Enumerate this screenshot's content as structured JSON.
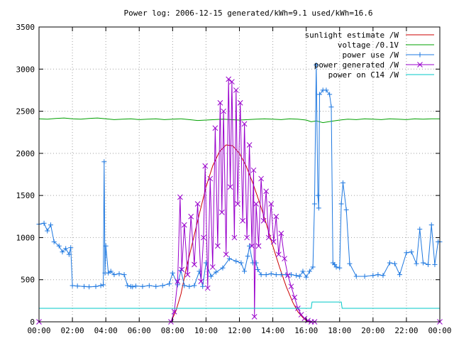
{
  "chart_data": {
    "type": "line",
    "title": "Power log: 2006-12-15 generated/kWh=9.1 used/kWh=16.6",
    "xlabel": "",
    "ylabel": "",
    "xlim": [
      0,
      24
    ],
    "ylim": [
      0,
      3500
    ],
    "x_ticks": [
      0,
      2,
      4,
      6,
      8,
      10,
      12,
      14,
      16,
      18,
      20,
      22,
      24
    ],
    "x_tick_labels": [
      "00:00",
      "02:00",
      "04:00",
      "06:00",
      "08:00",
      "10:00",
      "12:00",
      "14:00",
      "16:00",
      "18:00",
      "20:00",
      "22:00",
      "00:00"
    ],
    "y_ticks": [
      0,
      500,
      1000,
      1500,
      2000,
      2500,
      3000,
      3500
    ],
    "y_tick_labels": [
      "0",
      "500",
      "1000",
      "1500",
      "2000",
      "2500",
      "3000",
      "3500"
    ],
    "grid": true,
    "legend_position": "top-right",
    "series": [
      {
        "name": "sunlight estimate /W",
        "color": "#cc0000",
        "marker": "none",
        "x": [
          0,
          7.9,
          8.2,
          8.5,
          8.8,
          9.2,
          9.6,
          10.0,
          10.4,
          10.8,
          11.2,
          11.6,
          12.0,
          12.4,
          12.8,
          13.2,
          13.6,
          14.0,
          14.4,
          14.8,
          15.2,
          15.5,
          15.8,
          16.0,
          16.2,
          24
        ],
        "y": [
          0,
          0,
          130,
          330,
          620,
          950,
          1280,
          1600,
          1850,
          2020,
          2100,
          2090,
          2000,
          1850,
          1650,
          1420,
          1170,
          900,
          650,
          420,
          230,
          120,
          50,
          15,
          0,
          0
        ]
      },
      {
        "name": "voltage /0.1V",
        "color": "#00a000",
        "marker": "none",
        "x": [
          0,
          0.5,
          1.0,
          1.5,
          2.0,
          2.5,
          3.0,
          3.5,
          4.0,
          4.5,
          5.0,
          5.5,
          6.0,
          6.5,
          7.0,
          7.5,
          8.0,
          8.5,
          9.0,
          9.5,
          10.0,
          10.5,
          11.0,
          11.5,
          12.0,
          12.5,
          13.0,
          13.5,
          14.0,
          14.5,
          15.0,
          15.5,
          16.0,
          16.3,
          16.6,
          17.0,
          17.5,
          18.0,
          18.5,
          19.0,
          19.5,
          20.0,
          20.5,
          21.0,
          21.5,
          22.0,
          22.5,
          23.0,
          23.5,
          24.0
        ],
        "y": [
          2410,
          2405,
          2415,
          2420,
          2410,
          2405,
          2415,
          2420,
          2410,
          2400,
          2405,
          2410,
          2400,
          2405,
          2410,
          2400,
          2405,
          2410,
          2400,
          2390,
          2395,
          2400,
          2405,
          2400,
          2395,
          2400,
          2405,
          2410,
          2405,
          2400,
          2410,
          2405,
          2395,
          2375,
          2385,
          2365,
          2380,
          2395,
          2405,
          2400,
          2410,
          2405,
          2400,
          2410,
          2405,
          2400,
          2410,
          2405,
          2410,
          2410
        ]
      },
      {
        "name": "power use /W",
        "color": "#1e78e0",
        "marker": "plus",
        "x": [
          0,
          0.3,
          0.5,
          0.7,
          0.9,
          1.2,
          1.4,
          1.6,
          1.8,
          1.9,
          2.0,
          2.3,
          2.7,
          3.0,
          3.4,
          3.7,
          3.85,
          3.9,
          3.95,
          4.0,
          4.15,
          4.3,
          4.5,
          4.8,
          5.1,
          5.3,
          5.5,
          5.6,
          5.8,
          6.2,
          6.6,
          7.0,
          7.4,
          7.8,
          8.0,
          8.3,
          8.5,
          8.7,
          9.0,
          9.3,
          9.6,
          9.8,
          10.0,
          10.3,
          10.6,
          11.0,
          11.4,
          11.8,
          12.1,
          12.3,
          12.5,
          12.6,
          12.8,
          13.0,
          13.1,
          13.3,
          13.6,
          13.9,
          14.2,
          14.5,
          14.8,
          15.1,
          15.4,
          15.6,
          15.8,
          16.0,
          16.2,
          16.4,
          16.5,
          16.6,
          16.7,
          16.75,
          16.8,
          17.0,
          17.2,
          17.4,
          17.5,
          17.6,
          17.7,
          17.8,
          18.0,
          18.1,
          18.2,
          18.4,
          18.6,
          19.0,
          19.5,
          20.0,
          20.3,
          20.6,
          21.0,
          21.3,
          21.6,
          22.0,
          22.3,
          22.6,
          22.8,
          23.0,
          23.3,
          23.5,
          23.7,
          23.9,
          24.0
        ],
        "y": [
          1160,
          1170,
          1080,
          1150,
          950,
          900,
          830,
          870,
          800,
          880,
          430,
          425,
          420,
          415,
          420,
          430,
          440,
          1900,
          580,
          900,
          580,
          600,
          560,
          570,
          560,
          430,
          420,
          415,
          425,
          420,
          430,
          420,
          430,
          450,
          580,
          440,
          610,
          430,
          420,
          430,
          600,
          420,
          700,
          540,
          590,
          640,
          750,
          720,
          700,
          600,
          780,
          900,
          700,
          700,
          620,
          560,
          560,
          570,
          560,
          560,
          560,
          560,
          550,
          540,
          600,
          530,
          600,
          650,
          1400,
          3050,
          1500,
          1350,
          2700,
          2750,
          2750,
          2700,
          2550,
          700,
          680,
          650,
          640,
          1400,
          1650,
          1330,
          690,
          540,
          540,
          550,
          560,
          550,
          700,
          690,
          560,
          820,
          830,
          690,
          1100,
          700,
          680,
          1150,
          680,
          950,
          950
        ]
      },
      {
        "name": "power generated /W",
        "color": "#9900cc",
        "marker": "cross",
        "x": [
          0,
          7.9,
          8.1,
          8.3,
          8.45,
          8.55,
          8.7,
          8.9,
          9.1,
          9.3,
          9.5,
          9.7,
          9.85,
          9.95,
          10.1,
          10.25,
          10.4,
          10.55,
          10.7,
          10.85,
          10.95,
          11.05,
          11.2,
          11.35,
          11.45,
          11.55,
          11.7,
          11.8,
          11.9,
          12.05,
          12.2,
          12.3,
          12.45,
          12.6,
          12.75,
          12.85,
          12.9,
          13.0,
          13.15,
          13.3,
          13.45,
          13.6,
          13.75,
          13.9,
          14.05,
          14.2,
          14.35,
          14.5,
          14.7,
          14.9,
          15.1,
          15.3,
          15.5,
          15.7,
          15.9,
          16.1,
          16.3,
          16.5,
          24
        ],
        "y": [
          0,
          0,
          120,
          480,
          1480,
          620,
          1150,
          560,
          1250,
          680,
          1400,
          480,
          1000,
          1850,
          400,
          1700,
          650,
          2300,
          900,
          2600,
          1300,
          2500,
          800,
          2880,
          1600,
          2850,
          1000,
          2750,
          1400,
          2600,
          1200,
          2350,
          1000,
          2100,
          900,
          1800,
          60,
          1400,
          900,
          1700,
          1200,
          1550,
          1000,
          1400,
          950,
          1250,
          800,
          1050,
          750,
          550,
          420,
          290,
          160,
          85,
          40,
          15,
          0,
          0,
          0
        ]
      },
      {
        "name": "power on C14 /W",
        "color": "#00c8c8",
        "marker": "none",
        "x": [
          0,
          16.3,
          16.35,
          18.1,
          18.15,
          24
        ],
        "y": [
          160,
          160,
          235,
          235,
          160,
          160
        ]
      }
    ]
  }
}
